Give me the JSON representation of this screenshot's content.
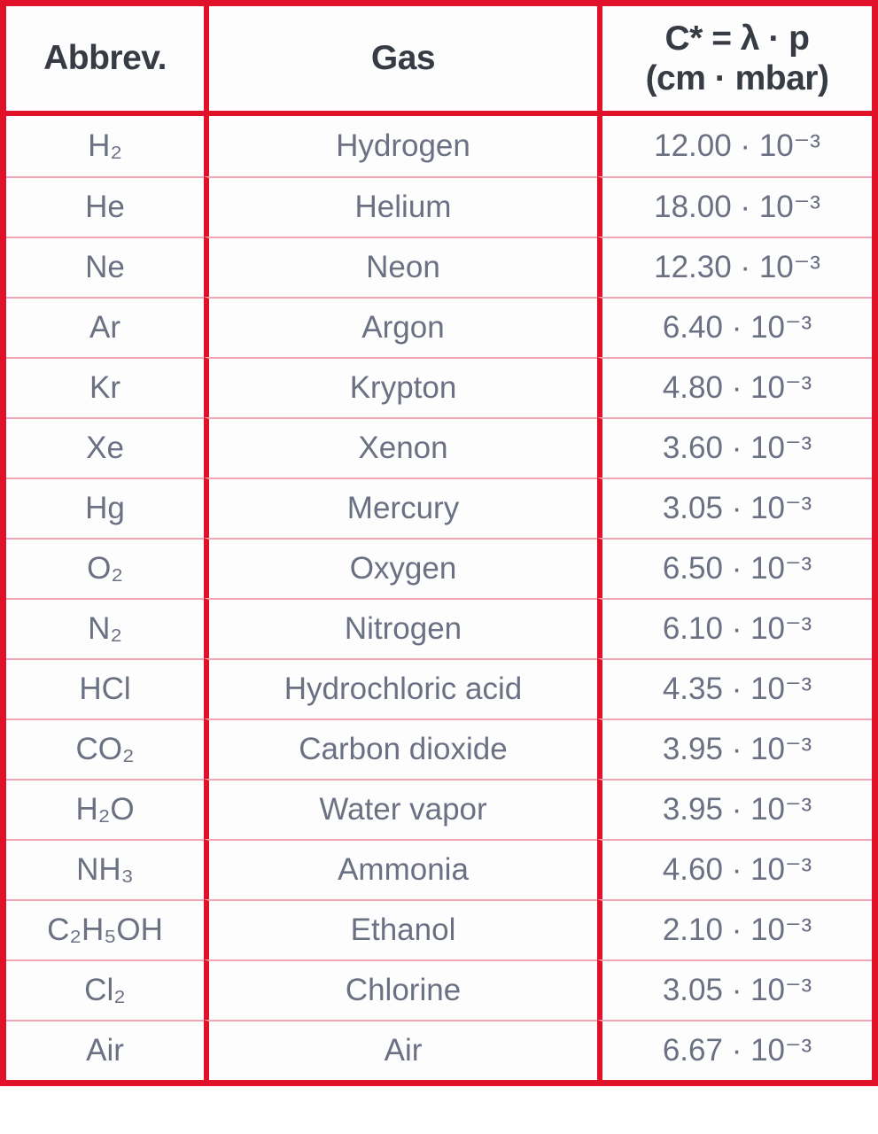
{
  "table": {
    "header": {
      "abbrev": "Abbrev.",
      "gas": "Gas",
      "value_line1": "C* = λ · p",
      "value_line2": "(cm · mbar)"
    },
    "rows": [
      {
        "abbrev": "H₂",
        "gas": "Hydrogen",
        "value": "12.00 · 10⁻³"
      },
      {
        "abbrev": "He",
        "gas": "Helium",
        "value": "18.00 · 10⁻³"
      },
      {
        "abbrev": "Ne",
        "gas": "Neon",
        "value": "12.30 · 10⁻³"
      },
      {
        "abbrev": "Ar",
        "gas": "Argon",
        "value": "6.40 · 10⁻³"
      },
      {
        "abbrev": "Kr",
        "gas": "Krypton",
        "value": "4.80 · 10⁻³"
      },
      {
        "abbrev": "Xe",
        "gas": "Xenon",
        "value": "3.60 · 10⁻³"
      },
      {
        "abbrev": "Hg",
        "gas": "Mercury",
        "value": "3.05 · 10⁻³"
      },
      {
        "abbrev": "O₂",
        "gas": "Oxygen",
        "value": "6.50 · 10⁻³"
      },
      {
        "abbrev": "N₂",
        "gas": "Nitrogen",
        "value": "6.10 · 10⁻³"
      },
      {
        "abbrev": "HCl",
        "gas": "Hydrochloric acid",
        "value": "4.35 · 10⁻³"
      },
      {
        "abbrev": "CO₂",
        "gas": "Carbon dioxide",
        "value": "3.95 · 10⁻³"
      },
      {
        "abbrev": "H₂O",
        "gas": "Water vapor",
        "value": "3.95 · 10⁻³"
      },
      {
        "abbrev": "NH₃",
        "gas": "Ammonia",
        "value": "4.60 · 10⁻³"
      },
      {
        "abbrev": "C₂H₅OH",
        "gas": "Ethanol",
        "value": "2.10 · 10⁻³"
      },
      {
        "abbrev": "Cl₂",
        "gas": "Chlorine",
        "value": "3.05 · 10⁻³"
      },
      {
        "abbrev": "Air",
        "gas": "Air",
        "value": "6.67 · 10⁻³"
      }
    ]
  },
  "colors": {
    "border_red": "#e2112a",
    "row_separator_pink": "#f3a7b2",
    "header_text": "#363b44",
    "body_text": "#6b7183",
    "cell_background": "#fdfdfe"
  }
}
